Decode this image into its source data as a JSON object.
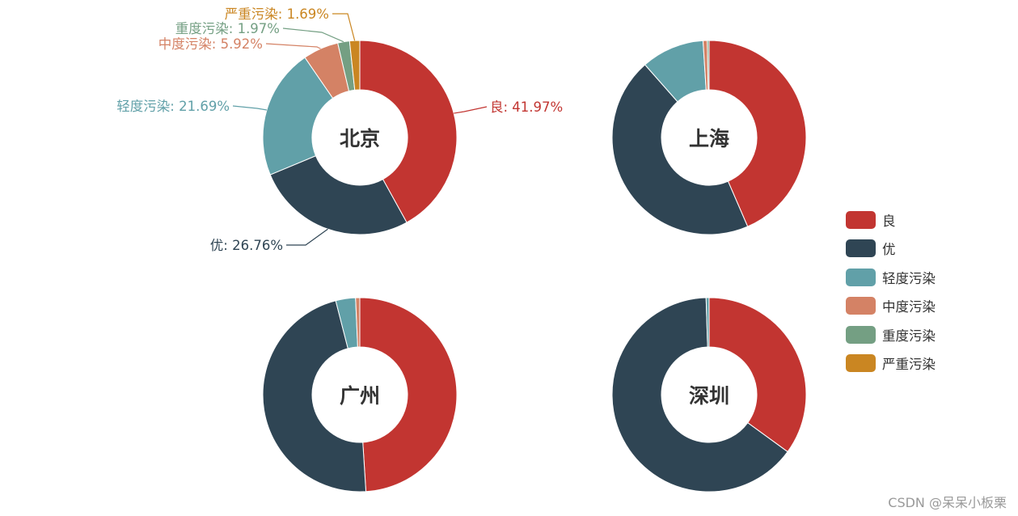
{
  "chart_data": {
    "type": "pie",
    "variant": "donut",
    "categories": [
      "良",
      "优",
      "轻度污染",
      "中度污染",
      "重度污染",
      "严重污染"
    ],
    "colors": [
      "#c23531",
      "#2f4554",
      "#61a0a8",
      "#d48265",
      "#749f83",
      "#ca8622"
    ],
    "legend_position": "right",
    "charts": [
      {
        "title": "北京",
        "values": [
          41.97,
          26.76,
          21.69,
          5.92,
          1.97,
          1.69
        ],
        "labels": [
          "良: 41.97%",
          "优: 26.76%",
          "轻度污染: 21.69%",
          "中度污染: 5.92%",
          "重度污染: 1.97%",
          "严重污染: 1.69%"
        ]
      },
      {
        "title": "上海",
        "values": [
          43.5,
          45.0,
          10.5,
          0.7,
          0.3,
          0.0
        ]
      },
      {
        "title": "广州",
        "values": [
          49.0,
          47.0,
          3.3,
          0.7,
          0.0,
          0.0
        ]
      },
      {
        "title": "深圳",
        "values": [
          35.0,
          64.5,
          0.5,
          0.0,
          0.0,
          0.0
        ]
      }
    ]
  },
  "watermark": "CSDN @呆呆小板栗"
}
